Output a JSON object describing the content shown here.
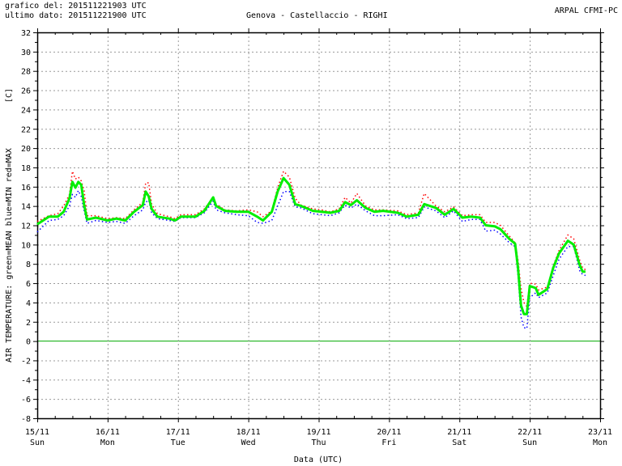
{
  "header": {
    "plot_time_label": "grafico del:",
    "plot_time": "201511221903 UTC",
    "last_data_label": "ultimo dato:",
    "last_data": "201511221900 UTC",
    "station": "Genova - Castellaccio - RIGHI",
    "agency": "ARPAL CFMI-PC"
  },
  "chart_data": {
    "type": "line",
    "title": "Genova - Castellaccio - RIGHI",
    "xlabel": "Data (UTC)",
    "ylabel": "AIR TEMPERATURE: green=MEAN  blue=MIN  red=MAX",
    "yunit": "[C]",
    "ylim": [
      -8,
      32
    ],
    "yticks": [
      -8,
      -6,
      -4,
      -2,
      0,
      2,
      4,
      6,
      8,
      10,
      12,
      14,
      16,
      18,
      20,
      22,
      24,
      26,
      28,
      30,
      32
    ],
    "xlim": [
      "2015-11-15T00:00",
      "2015-11-23T00:00"
    ],
    "xticks": [
      {
        "date": "15/11",
        "day": "Sun"
      },
      {
        "date": "16/11",
        "day": "Mon"
      },
      {
        "date": "17/11",
        "day": "Tue"
      },
      {
        "date": "18/11",
        "day": "Wed"
      },
      {
        "date": "19/11",
        "day": "Thu"
      },
      {
        "date": "20/11",
        "day": "Fri"
      },
      {
        "date": "21/11",
        "day": "Sat"
      },
      {
        "date": "22/11",
        "day": "Sun"
      },
      {
        "date": "23/11",
        "day": "Mon"
      }
    ],
    "grid": true,
    "colors": {
      "mean": "#00ee00",
      "min": "#0000ff",
      "max": "#ff0000",
      "zero_line": "#00aa00",
      "grid": "#999999"
    },
    "x": [
      "2015-11-15T00:00",
      "2015-11-15T04:00",
      "2015-11-15T07:00",
      "2015-11-15T09:00",
      "2015-11-15T11:00",
      "2015-11-15T12:00",
      "2015-11-15T13:00",
      "2015-11-15T14:00",
      "2015-11-15T15:00",
      "2015-11-15T16:00",
      "2015-11-15T17:00",
      "2015-11-15T20:00",
      "2015-11-16T00:00",
      "2015-11-16T03:00",
      "2015-11-16T06:00",
      "2015-11-16T09:00",
      "2015-11-16T12:00",
      "2015-11-16T13:00",
      "2015-11-16T14:00",
      "2015-11-16T15:00",
      "2015-11-16T17:00",
      "2015-11-16T21:00",
      "2015-11-16T23:00",
      "2015-11-17T01:00",
      "2015-11-17T06:00",
      "2015-11-17T09:00",
      "2015-11-17T12:00",
      "2015-11-17T13:00",
      "2015-11-17T16:00",
      "2015-11-17T20:00",
      "2015-11-18T00:00",
      "2015-11-18T03:00",
      "2015-11-18T05:00",
      "2015-11-18T08:00",
      "2015-11-18T10:00",
      "2015-11-18T12:00",
      "2015-11-18T14:00",
      "2015-11-18T16:00",
      "2015-11-18T18:00",
      "2015-11-18T22:00",
      "2015-11-19T01:00",
      "2015-11-19T04:00",
      "2015-11-19T07:00",
      "2015-11-19T09:00",
      "2015-11-19T11:00",
      "2015-11-19T13:00",
      "2015-11-19T16:00",
      "2015-11-19T19:00",
      "2015-11-19T22:00",
      "2015-11-20T03:00",
      "2015-11-20T06:00",
      "2015-11-20T10:00",
      "2015-11-20T12:00",
      "2015-11-20T16:00",
      "2015-11-20T19:00",
      "2015-11-20T22:00",
      "2015-11-21T01:00",
      "2015-11-21T04:00",
      "2015-11-21T07:00",
      "2015-11-21T09:00",
      "2015-11-21T12:00",
      "2015-11-21T14:00",
      "2015-11-21T17:00",
      "2015-11-21T19:00",
      "2015-11-21T20:00",
      "2015-11-21T21:00",
      "2015-11-21T22:00",
      "2015-11-21T23:00",
      "2015-11-22T00:00",
      "2015-11-22T02:00",
      "2015-11-22T03:00",
      "2015-11-22T06:00",
      "2015-11-22T08:00",
      "2015-11-22T10:00",
      "2015-11-22T13:00",
      "2015-11-22T15:00",
      "2015-11-22T17:00",
      "2015-11-22T18:00",
      "2015-11-22T19:00"
    ],
    "series": [
      {
        "name": "MEAN",
        "values": [
          12.1,
          12.9,
          12.9,
          13.4,
          14.8,
          16.5,
          15.9,
          16.5,
          16.2,
          14.1,
          12.6,
          12.8,
          12.5,
          12.7,
          12.5,
          13.4,
          14.1,
          15.5,
          15.0,
          13.7,
          12.9,
          12.7,
          12.5,
          12.9,
          12.9,
          13.5,
          14.9,
          14.0,
          13.5,
          13.4,
          13.4,
          12.9,
          12.5,
          13.4,
          15.5,
          16.9,
          16.2,
          14.2,
          14.0,
          13.5,
          13.4,
          13.3,
          13.5,
          14.4,
          14.1,
          14.6,
          13.8,
          13.4,
          13.5,
          13.3,
          12.9,
          13.1,
          14.2,
          13.8,
          13.1,
          13.7,
          12.8,
          12.9,
          12.8,
          12.0,
          11.9,
          11.6,
          10.6,
          10.1,
          7.6,
          3.7,
          2.8,
          2.8,
          5.7,
          5.5,
          4.8,
          5.4,
          7.6,
          9.1,
          10.4,
          10.0,
          7.9,
          7.2,
          7.2
        ]
      },
      {
        "name": "MIN",
        "values": [
          11.3,
          12.5,
          12.6,
          13.0,
          14.0,
          15.2,
          14.9,
          15.6,
          15.0,
          13.5,
          12.2,
          12.5,
          12.3,
          12.4,
          12.2,
          13.0,
          13.6,
          14.4,
          14.6,
          13.3,
          12.7,
          12.5,
          12.4,
          12.8,
          12.8,
          13.3,
          14.5,
          13.6,
          13.3,
          13.1,
          13.0,
          12.3,
          12.2,
          12.5,
          14.0,
          15.5,
          15.5,
          13.9,
          13.8,
          13.2,
          13.1,
          13.0,
          13.3,
          14.1,
          13.8,
          14.2,
          13.5,
          13.0,
          13.0,
          13.1,
          12.7,
          12.8,
          13.9,
          13.5,
          12.8,
          13.5,
          12.4,
          12.6,
          12.6,
          11.4,
          11.5,
          11.1,
          10.2,
          9.8,
          6.8,
          2.5,
          1.4,
          1.3,
          4.5,
          5.0,
          4.5,
          5.0,
          6.8,
          8.5,
          9.8,
          9.8,
          7.3,
          6.9,
          6.8
        ]
      },
      {
        "name": "MAX",
        "values": [
          12.4,
          13.0,
          13.2,
          14.0,
          15.2,
          17.6,
          16.8,
          17.0,
          16.6,
          15.6,
          13.0,
          13.0,
          12.7,
          12.8,
          12.7,
          13.6,
          14.4,
          16.4,
          16.4,
          14.2,
          13.2,
          12.9,
          12.7,
          13.1,
          13.1,
          13.7,
          14.9,
          14.2,
          13.6,
          13.5,
          13.6,
          13.4,
          12.9,
          13.5,
          15.9,
          17.6,
          17.0,
          14.8,
          14.1,
          13.7,
          13.6,
          13.4,
          13.7,
          14.9,
          14.3,
          15.3,
          14.0,
          13.6,
          13.6,
          13.5,
          13.1,
          13.3,
          15.3,
          14.0,
          13.4,
          13.9,
          13.0,
          13.1,
          13.1,
          12.3,
          12.3,
          12.0,
          10.9,
          10.2,
          8.4,
          5.5,
          4.0,
          3.6,
          6.0,
          5.9,
          5.3,
          5.6,
          7.8,
          9.4,
          11.0,
          10.6,
          8.4,
          7.6,
          7.4
        ]
      }
    ]
  }
}
